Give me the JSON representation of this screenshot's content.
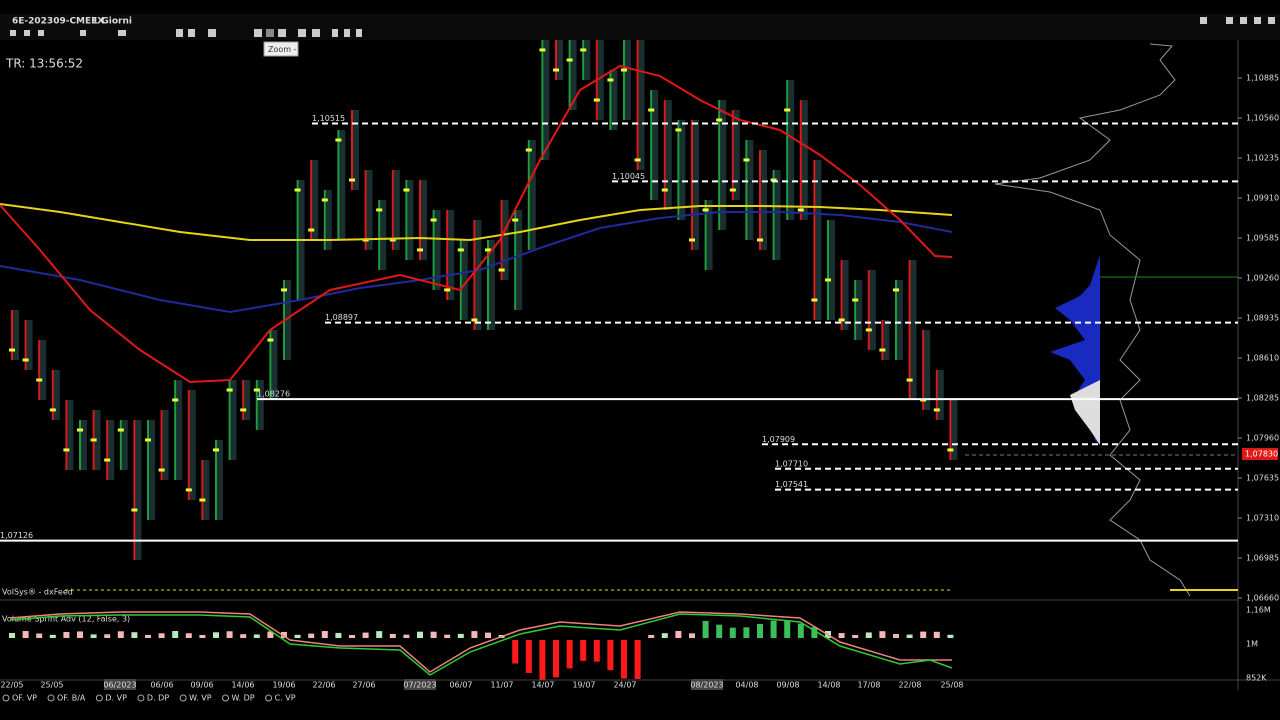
{
  "header": {
    "symbol": "6E-202309-CMEFX",
    "period": "1 Giorni"
  },
  "toolbar": {
    "tooltip": "Zoom -"
  },
  "info": {
    "timer": "TR: 13:56:52"
  },
  "price_axis": {
    "ticks": [
      {
        "value": 1.10885,
        "label": "1,10885"
      },
      {
        "value": 1.1056,
        "label": "1,10560"
      },
      {
        "value": 1.10235,
        "label": "1,10235"
      },
      {
        "value": 1.0991,
        "label": "1,09910"
      },
      {
        "value": 1.09585,
        "label": "1,09585"
      },
      {
        "value": 1.0926,
        "label": "1,09260"
      },
      {
        "value": 1.08935,
        "label": "1,08935"
      },
      {
        "value": 1.0861,
        "label": "1,08610"
      },
      {
        "value": 1.08285,
        "label": "1,08285"
      },
      {
        "value": 1.0796,
        "label": "1,07960"
      },
      {
        "value": 1.07635,
        "label": "1,07635"
      },
      {
        "value": 1.0731,
        "label": "1,07310"
      },
      {
        "value": 1.06985,
        "label": "1,06985"
      },
      {
        "value": 1.0666,
        "label": "1,06660"
      }
    ],
    "current": {
      "value": 1.0783,
      "label": "1,07830"
    }
  },
  "levels": [
    {
      "value": 1.10515,
      "label": "1,10515",
      "style": "dashed"
    },
    {
      "value": 1.10045,
      "label": "1,10045",
      "style": "dashed"
    },
    {
      "value": 1.08897,
      "label": "1,08897",
      "style": "dashed"
    },
    {
      "value": 1.08276,
      "label": "1,08276",
      "style": "solid"
    },
    {
      "value": 1.07909,
      "label": "1,07909",
      "style": "dashed"
    },
    {
      "value": 1.0771,
      "label": "1,07710",
      "style": "dashed"
    },
    {
      "value": 1.07541,
      "label": "1,07541",
      "style": "dashed"
    },
    {
      "value": 1.07126,
      "label": "1,07126",
      "style": "solid"
    }
  ],
  "bars": [
    [
      1.08838,
      1.09,
      1.08594,
      1.08675
    ],
    [
      1.08675,
      1.08919,
      1.08513,
      1.08594
    ],
    [
      1.08594,
      1.08756,
      1.08269,
      1.08431
    ],
    [
      1.08431,
      1.08513,
      1.08106,
      1.08188
    ],
    [
      1.08188,
      1.08269,
      1.077,
      1.07863
    ],
    [
      1.07863,
      1.08106,
      1.077,
      1.08025
    ],
    [
      1.08025,
      1.08188,
      1.077,
      1.07944
    ],
    [
      1.07944,
      1.08106,
      1.07619,
      1.07781
    ],
    [
      1.07781,
      1.08106,
      1.077,
      1.08025
    ],
    [
      1.08025,
      1.08106,
      1.06969,
      1.07375
    ],
    [
      1.07375,
      1.08106,
      1.07294,
      1.07944
    ],
    [
      1.07944,
      1.08188,
      1.07619,
      1.077
    ],
    [
      1.077,
      1.08431,
      1.07619,
      1.08269
    ],
    [
      1.08269,
      1.0835,
      1.07456,
      1.07538
    ],
    [
      1.07538,
      1.07781,
      1.07294,
      1.07456
    ],
    [
      1.07456,
      1.07944,
      1.07294,
      1.07863
    ],
    [
      1.07863,
      1.08431,
      1.07781,
      1.0835
    ],
    [
      1.0835,
      1.08431,
      1.08106,
      1.08188
    ],
    [
      1.08188,
      1.08431,
      1.08025,
      1.0835
    ],
    [
      1.0835,
      1.08838,
      1.08269,
      1.08756
    ],
    [
      1.08756,
      1.09244,
      1.08594,
      1.09163
    ],
    [
      1.09163,
      1.10056,
      1.09081,
      1.09975
    ],
    [
      1.09975,
      1.10219,
      1.09569,
      1.0965
    ],
    [
      1.0965,
      1.09975,
      1.09488,
      1.09894
    ],
    [
      1.09894,
      1.10463,
      1.09569,
      1.10381
    ],
    [
      1.10381,
      1.10625,
      1.09975,
      1.10056
    ],
    [
      1.10056,
      1.10138,
      1.09488,
      1.09569
    ],
    [
      1.09569,
      1.09894,
      1.09325,
      1.09813
    ],
    [
      1.09813,
      1.10138,
      1.09488,
      1.09569
    ],
    [
      1.09569,
      1.10056,
      1.09406,
      1.09975
    ],
    [
      1.09975,
      1.10056,
      1.09406,
      1.09488
    ],
    [
      1.09488,
      1.09813,
      1.09163,
      1.09731
    ],
    [
      1.09731,
      1.09813,
      1.09081,
      1.09163
    ],
    [
      1.09163,
      1.09569,
      1.08919,
      1.09488
    ],
    [
      1.09488,
      1.09731,
      1.08838,
      1.08919
    ],
    [
      1.08919,
      1.09569,
      1.08838,
      1.09488
    ],
    [
      1.09488,
      1.09894,
      1.09244,
      1.09325
    ],
    [
      1.09325,
      1.09813,
      1.09,
      1.09731
    ],
    [
      1.09731,
      1.10381,
      1.09488,
      1.103
    ],
    [
      1.103,
      1.11194,
      1.10219,
      1.11113
    ],
    [
      1.11113,
      1.11194,
      1.10869,
      1.1095
    ],
    [
      1.1095,
      1.11194,
      1.10625,
      1.11031
    ],
    [
      1.11031,
      1.11194,
      1.10869,
      1.11113
    ],
    [
      1.11113,
      1.11194,
      1.10544,
      1.10706
    ],
    [
      1.10706,
      1.1095,
      1.10463,
      1.10869
    ],
    [
      1.10869,
      1.11194,
      1.10544,
      1.1095
    ],
    [
      1.1095,
      1.11194,
      1.10138,
      1.10219
    ],
    [
      1.10219,
      1.10788,
      1.09894,
      1.10625
    ],
    [
      1.10625,
      1.10706,
      1.09813,
      1.09975
    ],
    [
      1.09975,
      1.10544,
      1.09731,
      1.10463
    ],
    [
      1.10463,
      1.10544,
      1.09488,
      1.09569
    ],
    [
      1.09569,
      1.09894,
      1.09325,
      1.09813
    ],
    [
      1.09813,
      1.10706,
      1.0965,
      1.10544
    ],
    [
      1.10544,
      1.10625,
      1.09894,
      1.09975
    ],
    [
      1.09975,
      1.10381,
      1.09569,
      1.10219
    ],
    [
      1.10219,
      1.103,
      1.09488,
      1.09569
    ],
    [
      1.09569,
      1.10138,
      1.09406,
      1.10056
    ],
    [
      1.10056,
      1.10869,
      1.09731,
      1.10625
    ],
    [
      1.10625,
      1.10706,
      1.09731,
      1.09813
    ],
    [
      1.09813,
      1.10219,
      1.08919,
      1.09081
    ],
    [
      1.09081,
      1.09731,
      1.08919,
      1.09244
    ],
    [
      1.09244,
      1.09406,
      1.08838,
      1.08919
    ],
    [
      1.08919,
      1.09244,
      1.08756,
      1.09081
    ],
    [
      1.09081,
      1.09325,
      1.08675,
      1.08838
    ],
    [
      1.08838,
      1.08919,
      1.08594,
      1.08675
    ],
    [
      1.08675,
      1.09244,
      1.08594,
      1.09163
    ],
    [
      1.09163,
      1.09406,
      1.08269,
      1.08431
    ],
    [
      1.08431,
      1.08838,
      1.08188,
      1.08269
    ],
    [
      1.08269,
      1.08513,
      1.08106,
      1.08188
    ],
    [
      1.08188,
      1.08269,
      1.07781,
      1.07863
    ]
  ],
  "footer": {
    "feed": "VolSys® - dxFeed"
  },
  "indicator": {
    "name": "Volume Sprint Adv (12, False, 3)",
    "axis": [
      "1,16M",
      "1M",
      "852K"
    ]
  },
  "dates": [
    "22/05",
    "25/05",
    "06/2023",
    "06/06",
    "09/06",
    "14/06",
    "19/06",
    "22/06",
    "27/06",
    "07/2023",
    "06/07",
    "11/07",
    "14/07",
    "19/07",
    "24/07",
    "08/2023",
    "04/08",
    "09/08",
    "14/08",
    "17/08",
    "22/08",
    "25/08"
  ],
  "tabs": [
    "OF. VP",
    "OF. B/A",
    "D. VP",
    "D. DP",
    "W. VP",
    "W. DP",
    "C. VP"
  ]
}
